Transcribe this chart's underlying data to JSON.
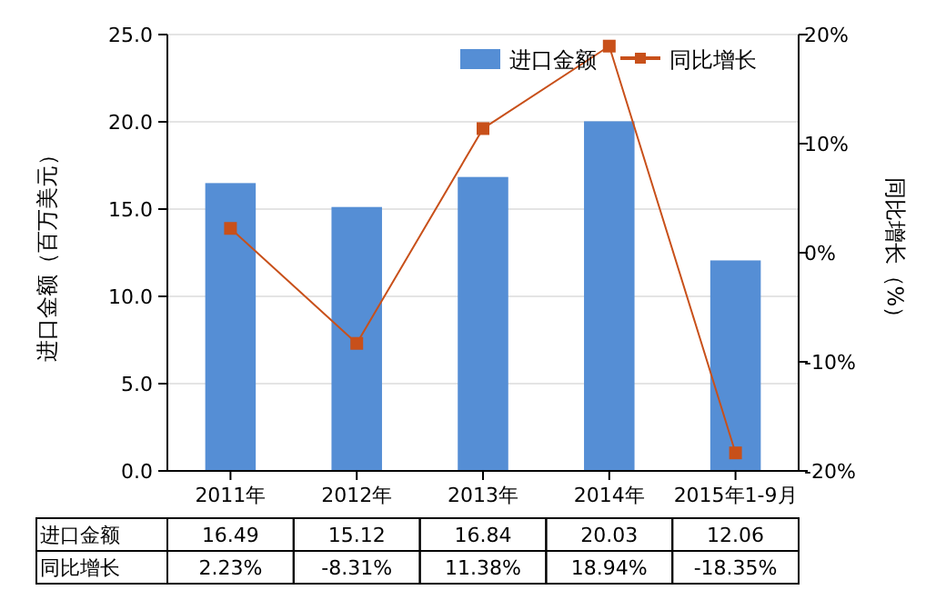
{
  "chart_data": {
    "type": "bar",
    "categories": [
      "2011年",
      "2012年",
      "2013年",
      "2014年",
      "2015年1-9月"
    ],
    "series": [
      {
        "name": "进口金额",
        "color": "#558ed5",
        "values": [
          16.49,
          15.12,
          16.84,
          20.03,
          12.06
        ],
        "value_labels": [
          "16.49",
          "15.12",
          "16.84",
          "20.03",
          "12.06"
        ]
      },
      {
        "name": "同比增长",
        "type": "line",
        "axis": "y2",
        "color": "#c8501a",
        "values": [
          2.23,
          -8.31,
          11.38,
          18.94,
          -18.35
        ],
        "value_labels": [
          "2.23%",
          "-8.31%",
          "11.38%",
          "18.94%",
          "-18.35%"
        ]
      }
    ],
    "ylabel": "进口金额（百万美元）",
    "y2label": "同比增长（%）",
    "ylim": [
      0,
      25
    ],
    "yticks": [
      {
        "value": 0,
        "label": "0.0"
      },
      {
        "value": 5,
        "label": "5.0"
      },
      {
        "value": 10,
        "label": "10.0"
      },
      {
        "value": 15,
        "label": "15.0"
      },
      {
        "value": 20,
        "label": "20.0"
      },
      {
        "value": 25,
        "label": "25.0"
      }
    ],
    "y2lim": [
      -20,
      20
    ],
    "y2ticks": [
      {
        "value": -20,
        "label": "-20%"
      },
      {
        "value": -10,
        "label": "-10%"
      },
      {
        "value": 0,
        "label": "0%"
      },
      {
        "value": 10,
        "label": "10%"
      },
      {
        "value": 20,
        "label": "20%"
      }
    ],
    "grid": "y",
    "legend": "top right",
    "marker": "square",
    "line_style": "solid",
    "data_labels": true
  }
}
